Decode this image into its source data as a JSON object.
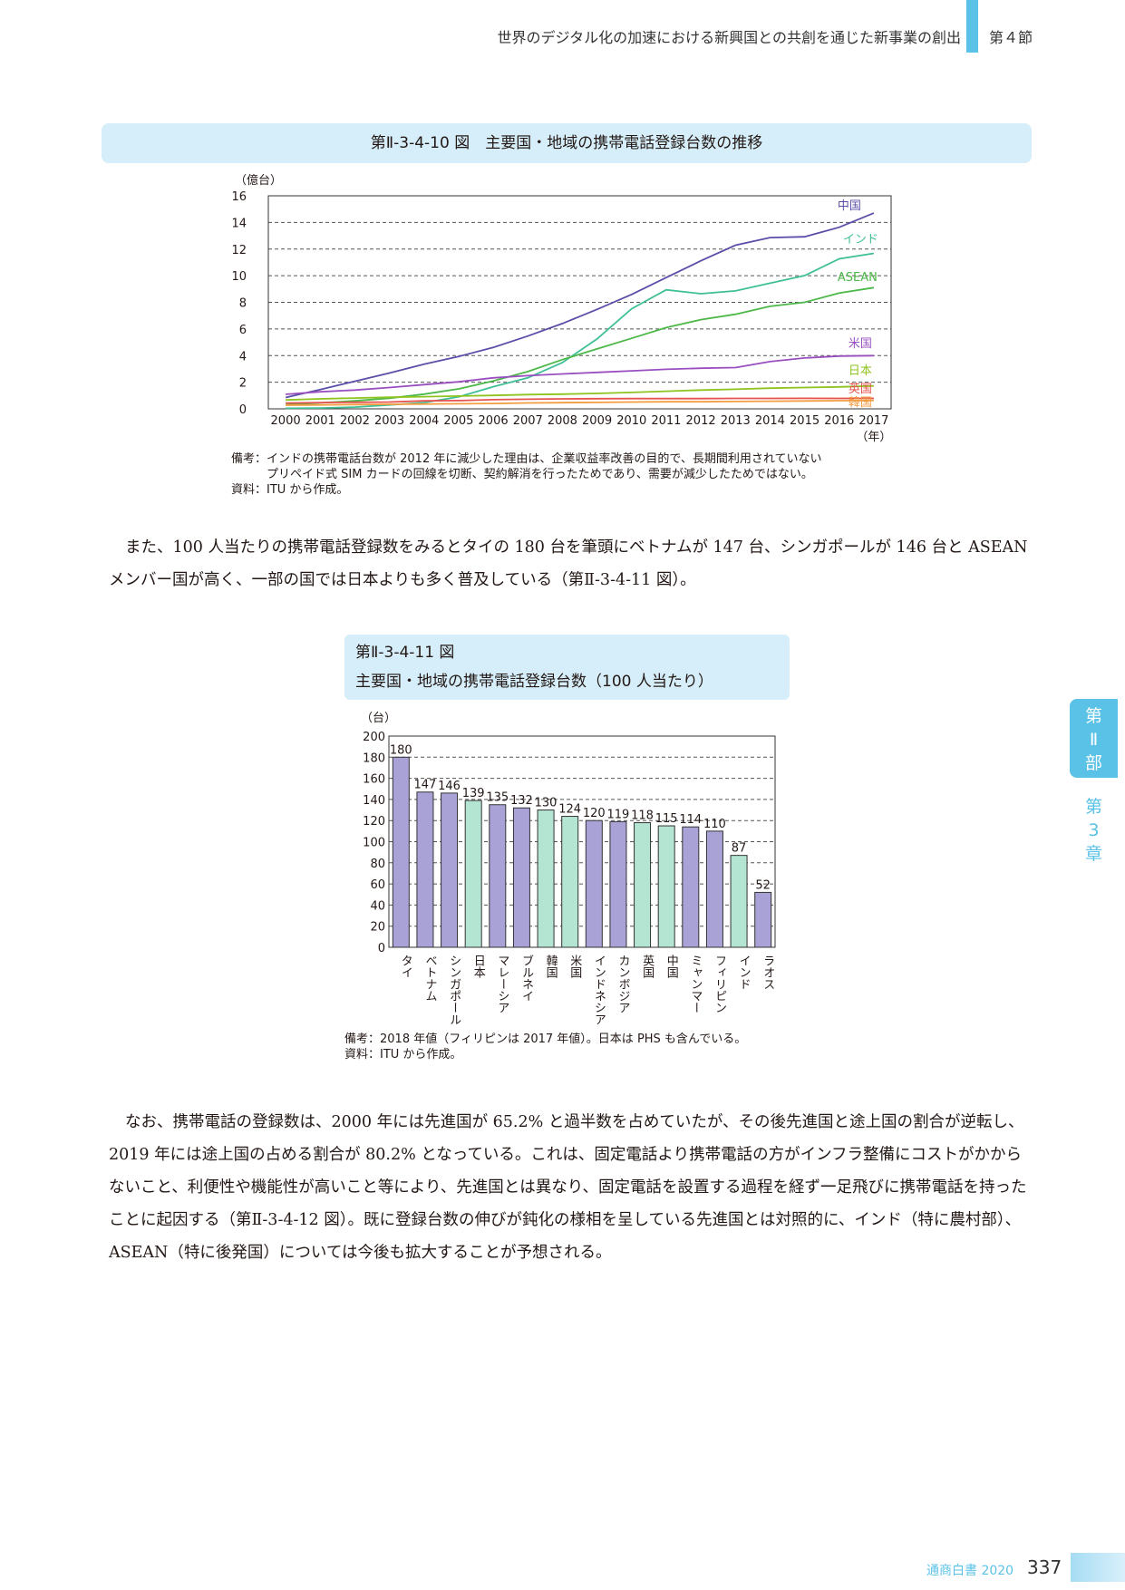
{
  "header": {
    "title": "世界のデジタル化の加速における新興国との共創を通じた新事業の創出",
    "section": "第４節"
  },
  "figure1": {
    "title": "第Ⅱ-3-4-10 図　主要国・地域の携帯電話登録台数の推移",
    "unit_label": "（億台）",
    "x_unit_label": "（年）",
    "note_lines": [
      "備考：インドの携帯電話台数が 2012 年に減少した理由は、企業収益率改善の目的で、長期間利用されていない",
      "　　　プリペイド式 SIM カードの回線を切断、契約解消を行ったためであり、需要が減少したためではない。",
      "資料：ITU から作成。"
    ]
  },
  "paragraph1": "また、100 人当たりの携帯電話登録数をみるとタイの 180 台を筆頭にベトナムが 147 台、シンガポールが 146 台と ASEAN メンバー国が高く、一部の国では日本よりも多く普及している（第Ⅱ-3-4-11 図）。",
  "figure2": {
    "title_line1": "第Ⅱ-3-4-11 図",
    "title_line2": "主要国・地域の携帯電話登録台数（100 人当たり）",
    "unit_label": "（台）",
    "note_lines": [
      "備考：2018 年値（フィリピンは 2017 年値）。日本は PHS も含んでいる。",
      "資料：ITU から作成。"
    ]
  },
  "paragraph2": "なお、携帯電話の登録数は、2000 年には先進国が 65.2% と過半数を占めていたが、その後先進国と途上国の割合が逆転し、2019 年には途上国の占める割合が 80.2% となっている。これは、固定電話より携帯電話の方がインフラ整備にコストがかからないこと、利便性や機能性が高いこと等により、先進国とは異なり、固定電話を設置する過程を経ず一足飛びに携帯電話を持ったことに起因する（第Ⅱ-3-4-12 図）。既に登録台数の伸びが鈍化の様相を呈している先進国とは対照的に、インド（特に農村部）、ASEAN（特に後発国）については今後も拡大することが予想される。",
  "side_tab": {
    "part": [
      "第",
      "Ⅱ",
      "部"
    ],
    "chapter": [
      "第",
      "3",
      "章"
    ]
  },
  "footer": {
    "label": "通商白書 2020",
    "page": "337"
  },
  "chart_data": [
    {
      "type": "line",
      "x": [
        2000,
        2001,
        2002,
        2003,
        2004,
        2005,
        2006,
        2007,
        2008,
        2009,
        2010,
        2011,
        2012,
        2013,
        2014,
        2015,
        2016,
        2017
      ],
      "ylim": [
        0,
        16
      ],
      "yticks": [
        0,
        2,
        4,
        6,
        8,
        10,
        12,
        14,
        16
      ],
      "ylabel": "（億台）",
      "xlabel": "（年）",
      "grid": "horizontal dashed",
      "series": [
        {
          "name": "中国",
          "color": "#5a4fa8",
          "values": [
            0.85,
            1.45,
            2.07,
            2.69,
            3.35,
            3.93,
            4.61,
            5.47,
            6.41,
            7.47,
            8.59,
            9.86,
            11.12,
            12.29,
            12.86,
            12.92,
            13.64,
            14.7
          ]
        },
        {
          "name": "インド",
          "color": "#3fbf97",
          "values": [
            0.04,
            0.06,
            0.13,
            0.29,
            0.47,
            0.9,
            1.66,
            2.33,
            3.47,
            5.25,
            7.52,
            8.94,
            8.65,
            8.86,
            9.44,
            10.01,
            11.27,
            11.68
          ]
        },
        {
          "name": "ASEAN",
          "color": "#4cb848",
          "values": [
            0.3,
            0.45,
            0.6,
            0.8,
            1.1,
            1.5,
            2.1,
            2.8,
            3.7,
            4.5,
            5.3,
            6.1,
            6.7,
            7.1,
            7.7,
            8.0,
            8.7,
            9.1
          ]
        },
        {
          "name": "米国",
          "color": "#9a4fc0",
          "values": [
            1.09,
            1.28,
            1.41,
            1.6,
            1.82,
            2.03,
            2.33,
            2.49,
            2.62,
            2.74,
            2.85,
            2.97,
            3.05,
            3.1,
            3.55,
            3.82,
            3.96,
            4.0
          ]
        },
        {
          "name": "日本",
          "color": "#8fc31f",
          "values": [
            0.67,
            0.75,
            0.81,
            0.87,
            0.91,
            0.96,
            1.01,
            1.07,
            1.1,
            1.16,
            1.23,
            1.32,
            1.41,
            1.47,
            1.55,
            1.6,
            1.65,
            1.72
          ]
        },
        {
          "name": "英国",
          "color": "#e6534e",
          "values": [
            0.43,
            0.47,
            0.49,
            0.51,
            0.6,
            0.62,
            0.69,
            0.72,
            0.75,
            0.76,
            0.77,
            0.77,
            0.77,
            0.78,
            0.78,
            0.79,
            0.78,
            0.79
          ]
        },
        {
          "name": "韓国",
          "color": "#f39c41",
          "values": [
            0.27,
            0.29,
            0.32,
            0.34,
            0.36,
            0.38,
            0.4,
            0.44,
            0.46,
            0.48,
            0.51,
            0.53,
            0.53,
            0.55,
            0.57,
            0.59,
            0.61,
            0.63
          ]
        }
      ]
    },
    {
      "type": "bar",
      "categories": [
        "タイ",
        "ベトナム",
        "シンガポール",
        "日本",
        "マレーシア",
        "ブルネイ",
        "韓国",
        "米国",
        "インドネシア",
        "カンボジア",
        "英国",
        "中国",
        "ミャンマー",
        "フィリピン",
        "インド",
        "ラオス"
      ],
      "values": [
        180,
        147,
        146,
        139,
        135,
        132,
        130,
        124,
        120,
        119,
        118,
        115,
        114,
        110,
        87,
        52
      ],
      "bar_colors": [
        "#a9a2d6",
        "#a9a2d6",
        "#a9a2d6",
        "#b4e4d2",
        "#a9a2d6",
        "#a9a2d6",
        "#b4e4d2",
        "#b4e4d2",
        "#a9a2d6",
        "#a9a2d6",
        "#b4e4d2",
        "#b4e4d2",
        "#a9a2d6",
        "#a9a2d6",
        "#b4e4d2",
        "#a9a2d6"
      ],
      "ylim": [
        0,
        200
      ],
      "yticks": [
        0,
        20,
        40,
        60,
        80,
        100,
        120,
        140,
        160,
        180,
        200
      ],
      "ylabel": "（台）",
      "grid": "horizontal dashed"
    }
  ]
}
